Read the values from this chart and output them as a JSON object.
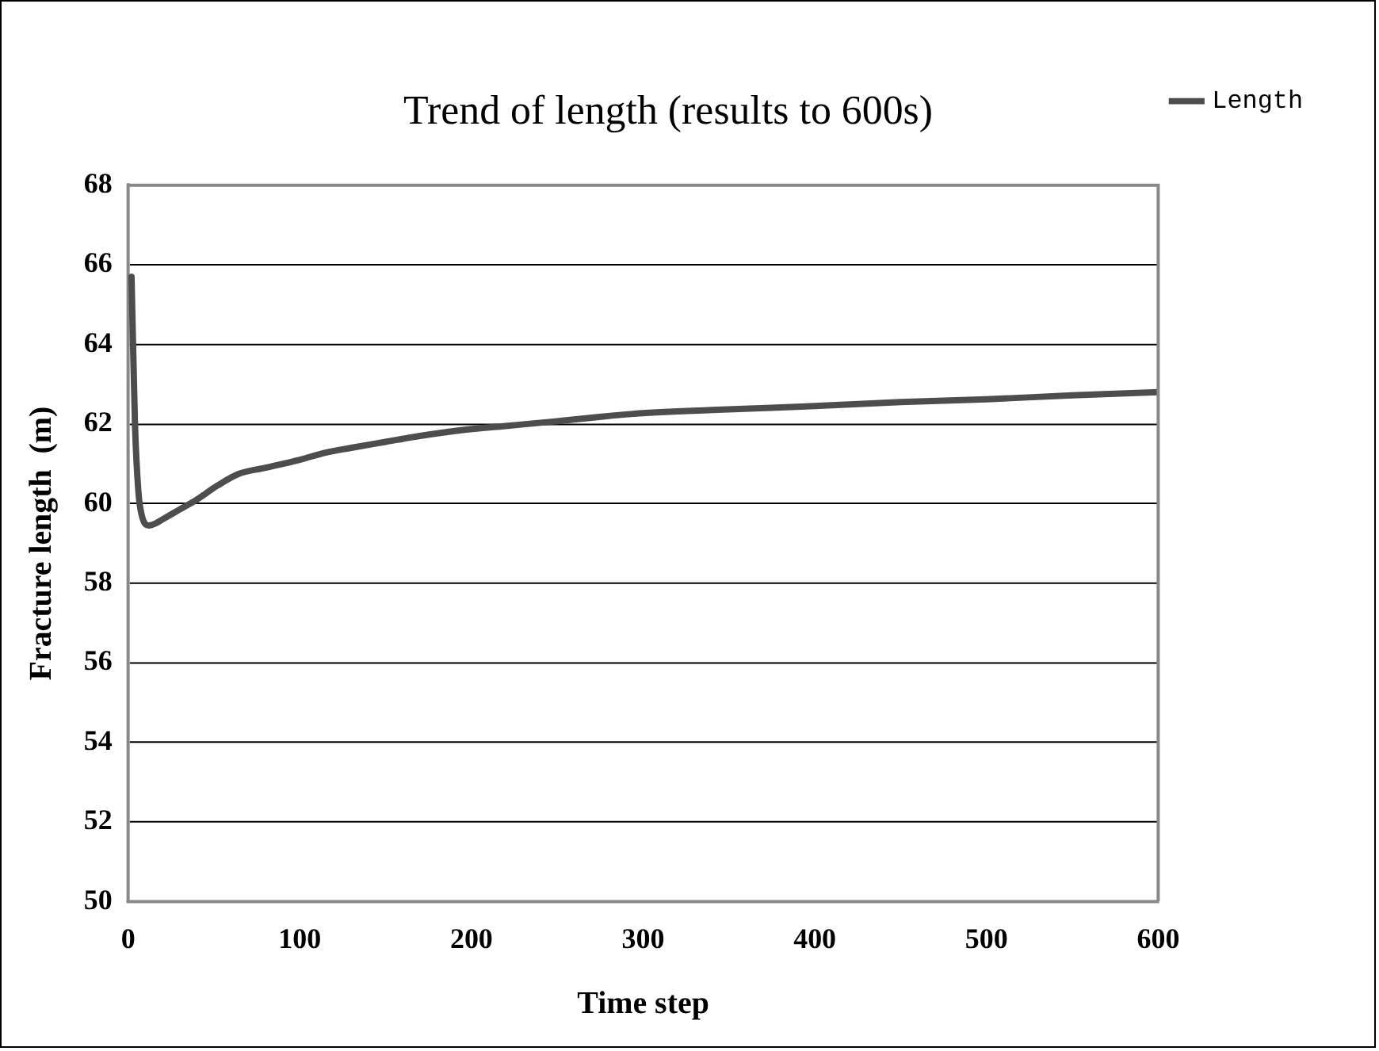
{
  "chart_data": {
    "type": "line",
    "title": "Trend of length (results to 600s)",
    "xlabel": "Time step",
    "ylabel": "Fracture length  (m)",
    "x": [
      2,
      4,
      6,
      8,
      12,
      16,
      20,
      30,
      40,
      52,
      64,
      80,
      100,
      115,
      130,
      150,
      170,
      195,
      220,
      250,
      293,
      340,
      400,
      450,
      500,
      550,
      600
    ],
    "series": [
      {
        "name": "Length",
        "color": "#4d4d4d",
        "values": [
          65.7,
          62,
          60.3,
          59.7,
          59.45,
          59.5,
          59.6,
          59.85,
          60.1,
          60.45,
          60.74,
          60.9,
          61.1,
          61.28,
          61.4,
          61.55,
          61.7,
          61.85,
          61.95,
          62.07,
          62.25,
          62.35,
          62.45,
          62.55,
          62.62,
          62.72,
          62.8
        ]
      }
    ],
    "xlim": [
      0,
      600
    ],
    "xticks": [
      0,
      100,
      200,
      300,
      400,
      500,
      600
    ],
    "ylim": [
      50,
      68
    ],
    "yticks": [
      50,
      52,
      54,
      56,
      58,
      60,
      62,
      64,
      66,
      68
    ],
    "grid": "y",
    "legend": "top right",
    "marker": "none",
    "line_style": "solid"
  }
}
